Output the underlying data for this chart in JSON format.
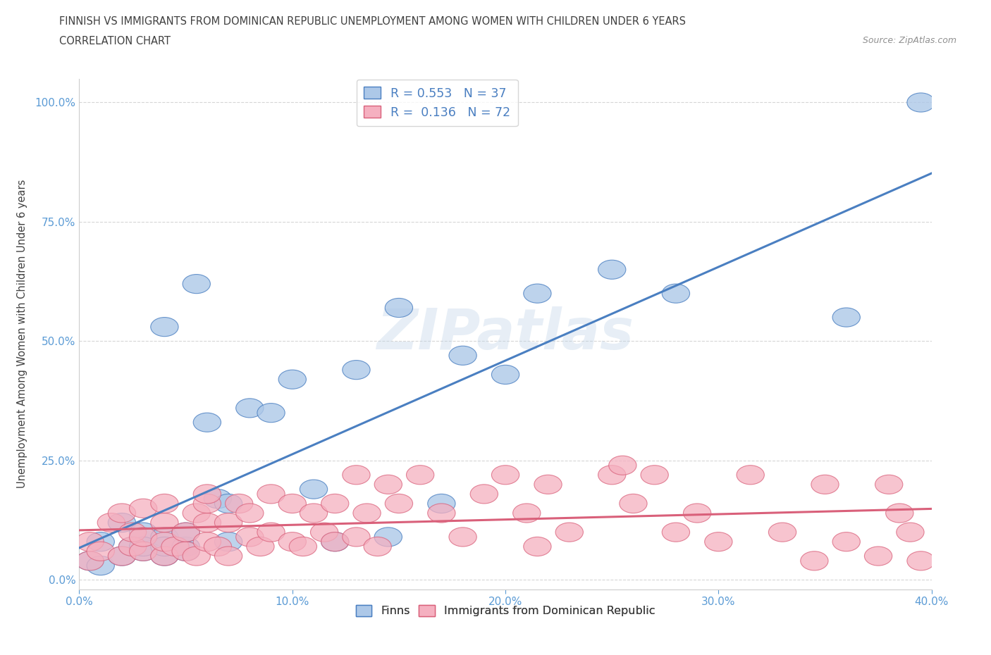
{
  "title_line1": "FINNISH VS IMMIGRANTS FROM DOMINICAN REPUBLIC UNEMPLOYMENT AMONG WOMEN WITH CHILDREN UNDER 6 YEARS",
  "title_line2": "CORRELATION CHART",
  "source": "Source: ZipAtlas.com",
  "ylabel": "Unemployment Among Women with Children Under 6 years",
  "xlim": [
    0.0,
    0.4
  ],
  "ylim": [
    -0.02,
    1.05
  ],
  "ytick_labels": [
    "0.0%",
    "25.0%",
    "50.0%",
    "75.0%",
    "100.0%"
  ],
  "ytick_values": [
    0.0,
    0.25,
    0.5,
    0.75,
    1.0
  ],
  "xtick_labels": [
    "0.0%",
    "10.0%",
    "20.0%",
    "30.0%",
    "40.0%"
  ],
  "xtick_values": [
    0.0,
    0.1,
    0.2,
    0.3,
    0.4
  ],
  "legend_r1": "0.553",
  "legend_n1": "37",
  "legend_r2": "0.136",
  "legend_n2": "72",
  "color_finns": "#adc8e8",
  "color_immigrants": "#f5b0c0",
  "color_line_finns": "#4a7fc1",
  "color_line_immigrants": "#d9607a",
  "color_title": "#404040",
  "color_source": "#909090",
  "color_axis_ticks": "#5b9bd5",
  "color_legend_text": "#4a7fc1",
  "watermark_text": "ZIPatlas",
  "finns_x": [
    0.005,
    0.01,
    0.01,
    0.02,
    0.02,
    0.025,
    0.03,
    0.03,
    0.03,
    0.04,
    0.04,
    0.04,
    0.04,
    0.05,
    0.05,
    0.05,
    0.055,
    0.06,
    0.065,
    0.07,
    0.07,
    0.08,
    0.09,
    0.1,
    0.11,
    0.12,
    0.13,
    0.145,
    0.15,
    0.17,
    0.18,
    0.2,
    0.215,
    0.25,
    0.28,
    0.36,
    0.395
  ],
  "finns_y": [
    0.04,
    0.03,
    0.08,
    0.05,
    0.12,
    0.07,
    0.06,
    0.1,
    0.07,
    0.05,
    0.09,
    0.07,
    0.53,
    0.07,
    0.1,
    0.06,
    0.62,
    0.33,
    0.17,
    0.16,
    0.08,
    0.36,
    0.35,
    0.42,
    0.19,
    0.08,
    0.44,
    0.09,
    0.57,
    0.16,
    0.47,
    0.43,
    0.6,
    0.65,
    0.6,
    0.55,
    1.0
  ],
  "immigrants_x": [
    0.005,
    0.005,
    0.01,
    0.015,
    0.02,
    0.02,
    0.025,
    0.025,
    0.03,
    0.03,
    0.03,
    0.04,
    0.04,
    0.04,
    0.04,
    0.045,
    0.05,
    0.05,
    0.055,
    0.055,
    0.06,
    0.06,
    0.06,
    0.06,
    0.065,
    0.07,
    0.07,
    0.075,
    0.08,
    0.08,
    0.085,
    0.09,
    0.09,
    0.1,
    0.1,
    0.105,
    0.11,
    0.115,
    0.12,
    0.12,
    0.13,
    0.13,
    0.135,
    0.14,
    0.145,
    0.15,
    0.16,
    0.17,
    0.18,
    0.19,
    0.2,
    0.21,
    0.215,
    0.22,
    0.23,
    0.25,
    0.255,
    0.26,
    0.27,
    0.28,
    0.29,
    0.3,
    0.315,
    0.33,
    0.345,
    0.35,
    0.36,
    0.375,
    0.38,
    0.385,
    0.39,
    0.395
  ],
  "immigrants_y": [
    0.04,
    0.08,
    0.06,
    0.12,
    0.05,
    0.14,
    0.07,
    0.1,
    0.06,
    0.09,
    0.15,
    0.05,
    0.08,
    0.12,
    0.16,
    0.07,
    0.06,
    0.1,
    0.05,
    0.14,
    0.08,
    0.12,
    0.16,
    0.18,
    0.07,
    0.05,
    0.12,
    0.16,
    0.09,
    0.14,
    0.07,
    0.1,
    0.18,
    0.08,
    0.16,
    0.07,
    0.14,
    0.1,
    0.08,
    0.16,
    0.09,
    0.22,
    0.14,
    0.07,
    0.2,
    0.16,
    0.22,
    0.14,
    0.09,
    0.18,
    0.22,
    0.14,
    0.07,
    0.2,
    0.1,
    0.22,
    0.24,
    0.16,
    0.22,
    0.1,
    0.14,
    0.08,
    0.22,
    0.1,
    0.04,
    0.2,
    0.08,
    0.05,
    0.2,
    0.14,
    0.1,
    0.04
  ]
}
